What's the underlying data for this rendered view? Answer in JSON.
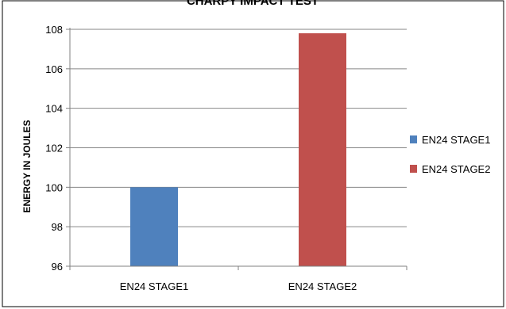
{
  "chart_data": {
    "type": "bar",
    "title": "CHARPY IMPACT TEST",
    "xlabel": "",
    "ylabel": "ENERGY IN JOULES",
    "ylim": [
      96,
      108
    ],
    "yticks": [
      96,
      98,
      100,
      102,
      104,
      106,
      108
    ],
    "grid": true,
    "legend_position": "right",
    "categories": [
      "EN24 STAGE1",
      "EN24 STAGE2"
    ],
    "series": [
      {
        "name": "EN24 STAGE1",
        "color": "#4f81bd",
        "values": [
          100,
          null
        ]
      },
      {
        "name": "EN24 STAGE2",
        "color": "#c0504d",
        "values": [
          null,
          107.8
        ]
      }
    ]
  }
}
